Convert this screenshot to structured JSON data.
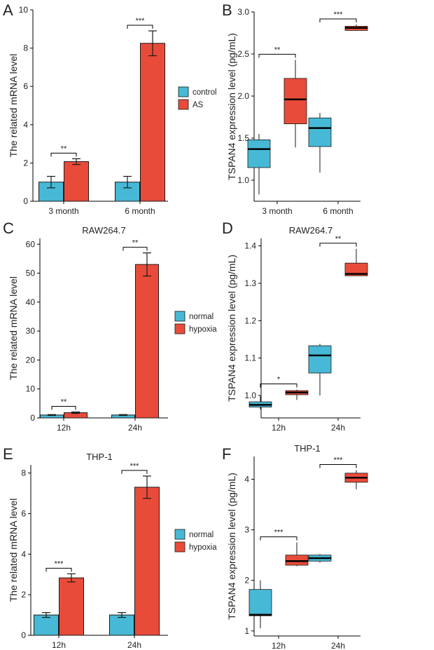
{
  "colors": {
    "control": "#47b9d6",
    "treatment": "#e94b3a"
  },
  "chart_data": [
    {
      "panel": "A",
      "type": "bar",
      "title": "",
      "ylabel": "The related mRNA level",
      "ylim": [
        0,
        10
      ],
      "yticks": [
        0,
        2,
        4,
        6,
        8,
        10
      ],
      "categories": [
        "3 month",
        "6 month"
      ],
      "legend": {
        "position": "right",
        "entries": [
          "control",
          "AS"
        ]
      },
      "series": [
        {
          "name": "control",
          "values": [
            1.0,
            1.0
          ],
          "errors": [
            0.3,
            0.3
          ]
        },
        {
          "name": "AS",
          "values": [
            2.07,
            8.25
          ],
          "errors": [
            0.15,
            0.65
          ]
        }
      ],
      "significance": [
        "**",
        "***"
      ]
    },
    {
      "panel": "B",
      "type": "box",
      "title": "",
      "ylabel": "TSPAN4 expression level (pg/mL)",
      "ylim": [
        0.75,
        3.0
      ],
      "yticks": [
        "1.0",
        "1.5",
        "2.0",
        "2.5",
        "3.0"
      ],
      "categories": [
        "3 month",
        "6 month"
      ],
      "series": [
        {
          "name": "control",
          "boxes": [
            {
              "min": 0.83,
              "q1": 1.15,
              "median": 1.37,
              "q3": 1.48,
              "max": 1.55
            },
            {
              "min": 1.09,
              "q1": 1.4,
              "median": 1.62,
              "q3": 1.74,
              "max": 1.8
            }
          ]
        },
        {
          "name": "AS",
          "boxes": [
            {
              "min": 1.39,
              "q1": 1.67,
              "median": 1.96,
              "q3": 2.21,
              "max": 2.43
            },
            {
              "min": 2.78,
              "q1": 2.78,
              "median": 2.81,
              "q3": 2.83,
              "max": 2.85
            }
          ]
        }
      ],
      "significance": [
        "**",
        "***"
      ]
    },
    {
      "panel": "C",
      "type": "bar",
      "title": "RAW264.7",
      "ylabel": "The related mRNA level",
      "ylim": [
        0,
        62
      ],
      "yticks": [
        0,
        10,
        20,
        30,
        40,
        50,
        60
      ],
      "categories": [
        "12h",
        "24h"
      ],
      "legend": {
        "position": "right",
        "entries": [
          "normal",
          "hypoxia"
        ]
      },
      "series": [
        {
          "name": "normal",
          "values": [
            1.0,
            1.0
          ],
          "errors": [
            0.15,
            0.15
          ]
        },
        {
          "name": "hypoxia",
          "values": [
            1.8,
            53.0
          ],
          "errors": [
            0.25,
            4.0
          ]
        }
      ],
      "significance": [
        "**",
        "**"
      ]
    },
    {
      "panel": "D",
      "type": "box",
      "title": "RAW264.7",
      "ylabel": "TSPAN4 expression level (pg/mL)",
      "ylim": [
        0.94,
        1.42
      ],
      "yticks": [
        "1.0",
        "1.1",
        "1.2",
        "1.3",
        "1.4"
      ],
      "categories": [
        "12h",
        "24h"
      ],
      "series": [
        {
          "name": "normal",
          "boxes": [
            {
              "min": 0.963,
              "q1": 0.969,
              "median": 0.975,
              "q3": 0.983,
              "max": 0.998
            },
            {
              "min": 1.0,
              "q1": 1.06,
              "median": 1.107,
              "q3": 1.133,
              "max": 1.138
            }
          ]
        },
        {
          "name": "hypoxia",
          "boxes": [
            {
              "min": 0.988,
              "q1": 1.002,
              "median": 1.008,
              "q3": 1.013,
              "max": 1.016
            },
            {
              "min": 1.32,
              "q1": 1.32,
              "median": 1.325,
              "q3": 1.354,
              "max": 1.392
            }
          ]
        }
      ],
      "significance": [
        "*",
        "**"
      ]
    },
    {
      "panel": "E",
      "type": "bar",
      "title": "THP-1",
      "ylabel": "The related mRNA level",
      "ylim": [
        0,
        8.4
      ],
      "yticks": [
        0,
        2,
        4,
        6,
        8
      ],
      "categories": [
        "12h",
        "24h"
      ],
      "legend": {
        "position": "right",
        "entries": [
          "normal",
          "hypoxia"
        ]
      },
      "series": [
        {
          "name": "normal",
          "values": [
            1.0,
            1.0
          ],
          "errors": [
            0.12,
            0.12
          ]
        },
        {
          "name": "hypoxia",
          "values": [
            2.83,
            7.3
          ],
          "errors": [
            0.2,
            0.55
          ]
        }
      ],
      "significance": [
        "***",
        "***"
      ]
    },
    {
      "panel": "F",
      "type": "box",
      "title": "THP-1",
      "ylabel": "TSPAN4 expression level (pg/mL)",
      "ylim": [
        0.9,
        4.45
      ],
      "yticks": [
        "1",
        "2",
        "3",
        "4"
      ],
      "categories": [
        "12h",
        "24h"
      ],
      "series": [
        {
          "name": "normal",
          "boxes": [
            {
              "min": 1.05,
              "q1": 1.3,
              "median": 1.32,
              "q3": 1.82,
              "max": 2.0
            },
            {
              "min": 2.35,
              "q1": 2.38,
              "median": 2.44,
              "q3": 2.5,
              "max": 2.52
            }
          ]
        },
        {
          "name": "hypoxia",
          "boxes": [
            {
              "min": 2.28,
              "q1": 2.3,
              "median": 2.38,
              "q3": 2.5,
              "max": 2.75
            },
            {
              "min": 3.8,
              "q1": 3.94,
              "median": 4.03,
              "q3": 4.12,
              "max": 4.18
            }
          ]
        }
      ],
      "significance": [
        "***",
        "***"
      ]
    }
  ]
}
